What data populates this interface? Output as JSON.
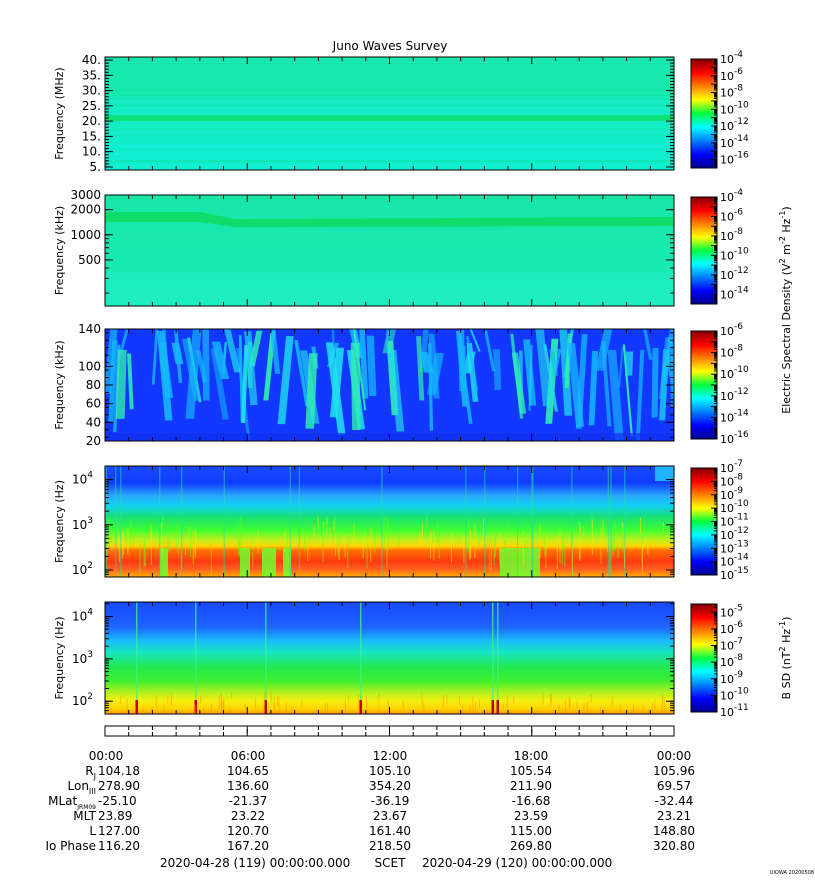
{
  "title": "Juno Waves Survey",
  "footer_left": "2020-04-28 (119) 00:00:00.000",
  "footer_mid": "SCET",
  "footer_right": "2020-04-29 (120) 00:00:00.000",
  "watermark": "UIOWA 20200508",
  "colorbar_labels": {
    "efield": "Electric Spectral Density (V",
    "bfield": "B SD (nT"
  },
  "chart_data": [
    {
      "type": "heatmap",
      "name": "HFR high",
      "ylabel": "Frequency (MHz)",
      "yscale": "linear",
      "ylim": [
        4,
        41
      ],
      "yticks": [
        "40.",
        "35.",
        "30.",
        "25.",
        "20.",
        "15.",
        "10.",
        "5."
      ],
      "ytick_values": [
        40,
        35,
        30,
        25,
        20,
        15,
        10,
        5
      ],
      "colorbar": {
        "min_exp": -17,
        "max_exp": -4,
        "labels": [
          -4,
          -6,
          -8,
          -10,
          -12,
          -14,
          -16
        ]
      },
      "features": [
        "uniform background",
        "narrow band near 21 MHz"
      ]
    },
    {
      "type": "heatmap",
      "name": "HFR low",
      "ylabel": "Frequency (kHz)",
      "yscale": "log",
      "ylim": [
        140,
        3000
      ],
      "yticks": [
        "3000",
        "2000",
        "1000",
        "500"
      ],
      "ytick_values": [
        3000,
        2000,
        1000,
        500
      ],
      "colorbar": {
        "min_exp": -15,
        "max_exp": -4,
        "labels": [
          -4,
          -6,
          -8,
          -10,
          -12,
          -14
        ]
      },
      "features": [
        "uniform background",
        "band near 1600 kHz drifting to 1400 kHz"
      ]
    },
    {
      "type": "heatmap",
      "name": "LFR high",
      "ylabel": "Frequency (kHz)",
      "yscale": "linear",
      "ylim": [
        20,
        140
      ],
      "yticks": [
        "140",
        "100",
        "80",
        "60",
        "40",
        "20"
      ],
      "ytick_values": [
        140,
        100,
        80,
        60,
        40,
        20
      ],
      "colorbar": {
        "min_exp": -16,
        "max_exp": -6,
        "labels": [
          -6,
          -8,
          -10,
          -12,
          -14,
          -16
        ]
      },
      "features": [
        "low background",
        "scattered broadband emission streaks"
      ]
    },
    {
      "type": "heatmap",
      "name": "E-field LFR",
      "ylabel": "Frequency (Hz)",
      "yscale": "log",
      "ylim": [
        70,
        20000
      ],
      "yticks": [
        "10",
        "10",
        "10"
      ],
      "ytick_exps": [
        "4",
        "3",
        "2"
      ],
      "ytick_values": [
        10000,
        1000,
        100
      ],
      "colorbar": {
        "min_exp": -15,
        "max_exp": -7,
        "labels": [
          -7,
          -8,
          -9,
          -10,
          -11,
          -12,
          -13,
          -14,
          -15
        ]
      },
      "features": [
        "intense emission below ~250 Hz",
        "gradient to low levels above 3 kHz"
      ]
    },
    {
      "type": "heatmap",
      "name": "B-field LFR",
      "ylabel": "B SD (nT",
      "ylabel_axis": "Frequency (Hz)",
      "yscale": "log",
      "ylim": [
        50,
        22000
      ],
      "yticks": [
        "10",
        "10",
        "10"
      ],
      "ytick_exps": [
        "4",
        "3",
        "2"
      ],
      "ytick_values": [
        10000,
        1000,
        100
      ],
      "colorbar": {
        "min_exp": -11,
        "max_exp": -4.5,
        "labels": [
          -5,
          -6,
          -7,
          -8,
          -9,
          -10,
          -11
        ]
      },
      "features": [
        "gradient from high at low frequency to low above 3 kHz",
        "vertical spikes"
      ]
    }
  ],
  "time_axis": {
    "ticks": [
      "00:00",
      "06:00",
      "12:00",
      "18:00",
      "00:00"
    ],
    "rows": [
      {
        "label": "R",
        "sub": "J",
        "values": [
          "104.18",
          "104.65",
          "105.10",
          "105.54",
          "105.96"
        ]
      },
      {
        "label": "Lon",
        "sub": "III",
        "values": [
          "278.90",
          "136.60",
          "354.20",
          "211.90",
          "69.57"
        ]
      },
      {
        "label": "MLat",
        "sub": "JRM09",
        "values": [
          "-25.10",
          "-21.37",
          "-36.19",
          "-16.68",
          "-32.44"
        ]
      },
      {
        "label": "MLT",
        "sub": "",
        "values": [
          "23.89",
          "23.22",
          "23.67",
          "23.59",
          "23.21"
        ]
      },
      {
        "label": "L",
        "sub": "",
        "values": [
          "127.00",
          "120.70",
          "161.40",
          "115.00",
          "148.80"
        ]
      },
      {
        "label": "Io Phase",
        "sub": "",
        "values": [
          "116.20",
          "167.20",
          "218.50",
          "269.80",
          "320.80"
        ]
      }
    ]
  }
}
